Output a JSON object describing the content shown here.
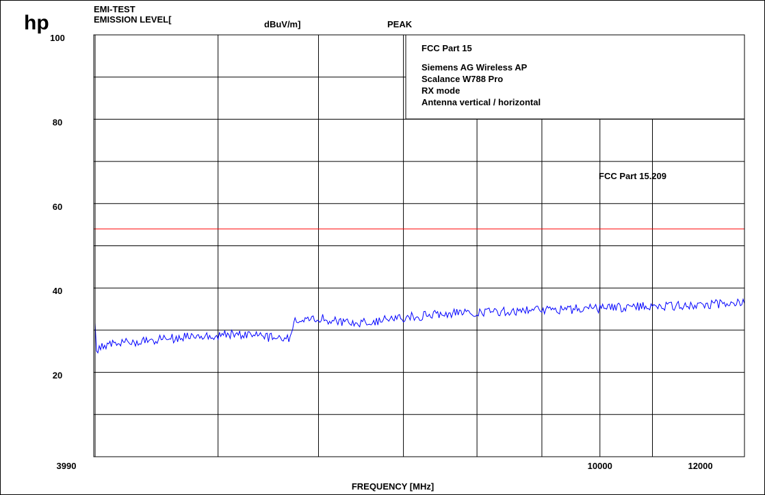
{
  "header": {
    "logo": "hp",
    "test_name": "EMI-TEST",
    "level_label": "EMISSION LEVEL[",
    "unit_label": "dBuV/m]",
    "detector": "PEAK",
    "detector_color": "#0000ff"
  },
  "info_box": {
    "lines": [
      "FCC Part 15",
      "Siemens AG Wireless AP",
      "Scalance  W788 Pro",
      "RX  mode",
      "Antenna vertical / horizontal"
    ]
  },
  "chart_data": {
    "type": "line",
    "xlabel": "FREQUENCY [MHz]",
    "ylabel": "",
    "xscale": "log",
    "xlim": [
      3990,
      13000
    ],
    "ylim": [
      0,
      100
    ],
    "x_ticks": [
      {
        "value": 3990,
        "label": "3990"
      },
      {
        "value": 10000,
        "label": "10000"
      },
      {
        "value": 12000,
        "label": "12000"
      }
    ],
    "y_ticks": [
      {
        "value": 100,
        "label": "100"
      },
      {
        "value": 80,
        "label": "80"
      },
      {
        "value": 60,
        "label": "60"
      },
      {
        "value": 40,
        "label": "40"
      },
      {
        "value": 20,
        "label": "20"
      }
    ],
    "grid": true,
    "limit_line": {
      "name": "FCC Part 15.209",
      "value": 54,
      "color": "#ff0000"
    },
    "series": [
      {
        "color": "#0000ff",
        "x": [
          3990,
          4010,
          4050,
          4200,
          4400,
          4600,
          4800,
          5000,
          5200,
          5400,
          5600,
          5700,
          5750,
          5800,
          6000,
          6200,
          6400,
          6600,
          6800,
          7000,
          7300,
          7600,
          8000,
          8400,
          8800,
          9200,
          9600,
          10000,
          10500,
          11000,
          11500,
          12000,
          12500,
          13000
        ],
        "y": [
          37,
          25,
          26,
          27,
          27.5,
          28,
          28.5,
          28.8,
          29,
          28.5,
          28,
          27.8,
          33,
          32.5,
          33,
          32,
          31.5,
          32,
          32.5,
          33,
          33.5,
          34,
          34.2,
          34.4,
          34.6,
          34.8,
          35,
          35.2,
          35.4,
          35.6,
          35.8,
          36,
          36.2,
          36.3
        ]
      }
    ]
  }
}
